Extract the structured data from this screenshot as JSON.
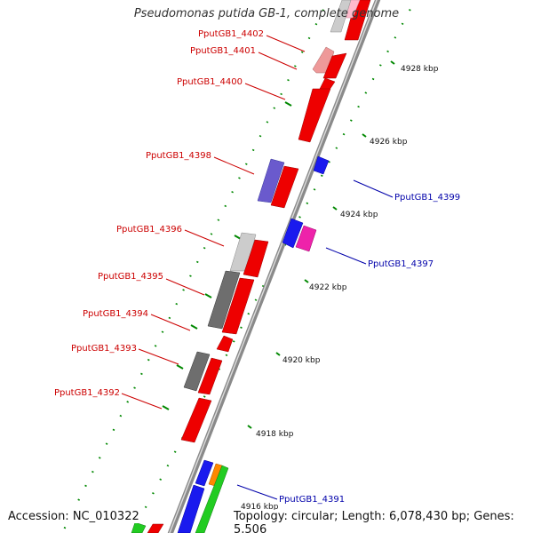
{
  "title": "Pseudomonas putida GB-1, complete genome",
  "footer": {
    "accession": "Accession: NC_010322",
    "topology": "Topology: circular; Length: 6,078,430 bp; Genes: 5,506"
  },
  "scale_labels": [
    "4928 kbp",
    "4926 kbp",
    "4924 kbp",
    "4922 kbp",
    "4920 kbp",
    "4918 kbp",
    "4916 kbp"
  ],
  "genes": [
    {
      "id": "PputGB1_4402",
      "strand": "reverse",
      "label_color": "#cc0000"
    },
    {
      "id": "PputGB1_4401",
      "strand": "reverse",
      "label_color": "#cc0000"
    },
    {
      "id": "PputGB1_4400",
      "strand": "reverse",
      "label_color": "#cc0000"
    },
    {
      "id": "PputGB1_4399",
      "strand": "forward",
      "label_color": "#0000aa"
    },
    {
      "id": "PputGB1_4398",
      "strand": "reverse",
      "label_color": "#cc0000"
    },
    {
      "id": "PputGB1_4397",
      "strand": "forward",
      "label_color": "#0000aa"
    },
    {
      "id": "PputGB1_4396",
      "strand": "reverse",
      "label_color": "#cc0000"
    },
    {
      "id": "PputGB1_4395",
      "strand": "reverse",
      "label_color": "#cc0000"
    },
    {
      "id": "PputGB1_4394",
      "strand": "reverse",
      "label_color": "#cc0000"
    },
    {
      "id": "PputGB1_4393",
      "strand": "reverse",
      "label_color": "#cc0000"
    },
    {
      "id": "PputGB1_4392",
      "strand": "reverse",
      "label_color": "#cc0000"
    },
    {
      "id": "PputGB1_4391",
      "strand": "forward",
      "label_color": "#0000aa"
    }
  ],
  "colors": {
    "backbone": "#909090",
    "cds_red": "#ee0000",
    "cds_blue": "#1a1aee",
    "cds_magenta": "#ee22aa",
    "cds_purple": "#6a5acd",
    "cds_green": "#22cc22",
    "cds_orange": "#ff8800",
    "cds_gray": "#6e6e6e",
    "cds_lightgray": "#cccccc",
    "cds_pink": "#ee9999",
    "ticks": "#008800"
  }
}
